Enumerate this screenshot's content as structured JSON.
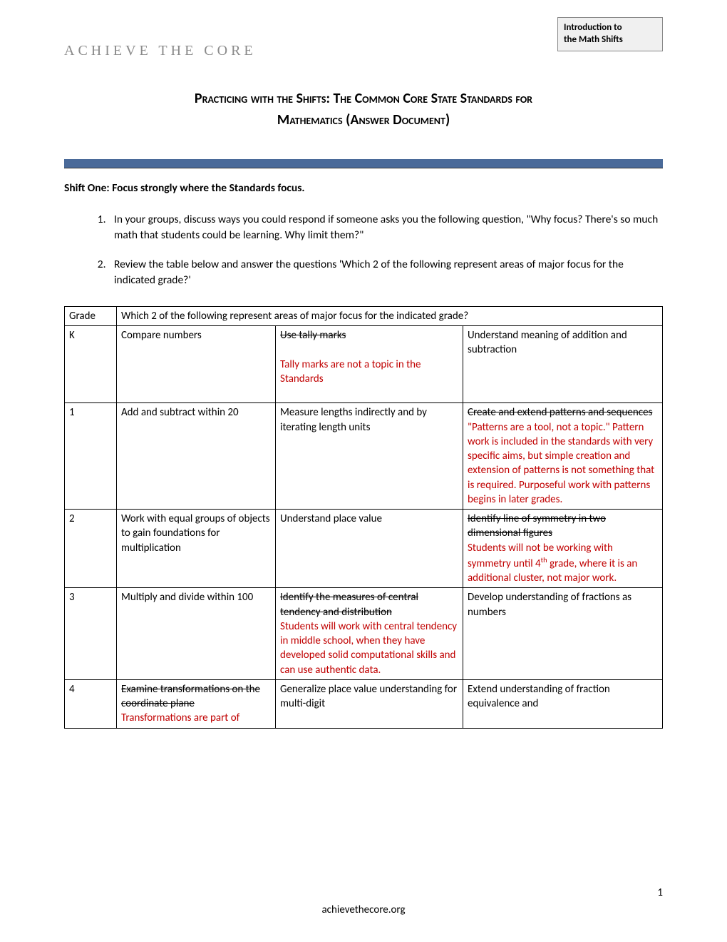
{
  "header_box": {
    "line1": "Introduction to",
    "line2": "the Math Shifts"
  },
  "brand": "ACHIEVE THE CORE",
  "title_line1": "Practicing with the Shifts: The Common Core State Standards for",
  "title_line2": "Mathematics (Answer Document)",
  "shift_heading": "Shift One: Focus strongly where the Standards focus.",
  "q1": "In your groups, discuss ways you could respond if someone asks you the following question, \"Why focus? There's so much math that students could be learning. Why limit them?\"",
  "q2": "Review the table below and answer the questions 'Which 2 of the following represent areas of major focus for the indicated grade?'",
  "table": {
    "header_grade": "Grade",
    "header_question": "Which 2 of the following represent areas of major focus for the indicated grade?",
    "rows": [
      {
        "grade": "K",
        "a": {
          "plain": "Compare numbers"
        },
        "b": {
          "strike": "Use tally marks",
          "red": "Tally marks are not a topic in the Standards"
        },
        "c": {
          "plain": "Understand meaning of addition and subtraction"
        }
      },
      {
        "grade": "1",
        "a": {
          "plain": "Add and subtract within 20"
        },
        "b": {
          "plain": "Measure lengths indirectly and by iterating length units"
        },
        "c": {
          "strike": "Create and extend patterns and sequences",
          "red_inline_prefix": "\"Patterns are a tool, not a topic.\"  Pattern work is included in the standards with very specific aims, but simple creation and extension of patterns is not something that is required. Purposeful work with patterns begins in later grades."
        }
      },
      {
        "grade": "2",
        "a": {
          "plain": "Work with equal groups of objects to gain foundations for multiplication"
        },
        "b": {
          "plain": "Understand place value"
        },
        "c": {
          "strike": "Identify line of symmetry in two dimensional figures",
          "red_html": "Students will not be working with symmetry until 4<span class=\"sup\">th</span> grade, where it is an additional cluster, not major work."
        }
      },
      {
        "grade": "3",
        "a": {
          "plain": "Multiply and divide within 100"
        },
        "b": {
          "strike": "Identify the measures of central tendency and distribution",
          "red": "Students will work with central tendency in middle school, when they have developed solid computational skills and can use authentic data."
        },
        "c": {
          "plain": "Develop understanding of fractions as numbers"
        }
      },
      {
        "grade": "4",
        "a": {
          "strike": "Examine transformations on the coordinate plane",
          "red": "Transformations are part of"
        },
        "b": {
          "plain": "Generalize place value understanding for multi-digit"
        },
        "c": {
          "plain": "Extend understanding of fraction equivalence and"
        }
      }
    ]
  },
  "footer": "achievethecore.org",
  "page_number": "1"
}
